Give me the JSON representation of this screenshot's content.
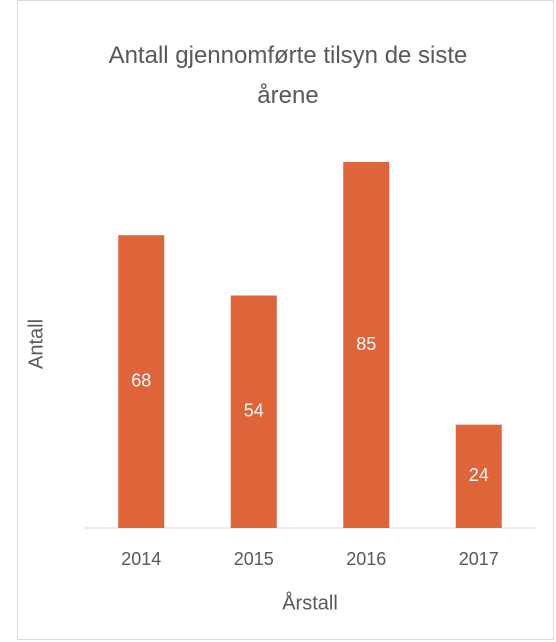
{
  "chart_data": {
    "type": "bar",
    "title": "Antall gjennomførte tilsyn de siste årene",
    "x_label": "Årstall",
    "y_label": "Antall",
    "categories": [
      "2014",
      "2015",
      "2016",
      "2017"
    ],
    "values": [
      68,
      54,
      85,
      24
    ],
    "color": "#e0643a",
    "ylim": [
      0,
      90
    ]
  }
}
